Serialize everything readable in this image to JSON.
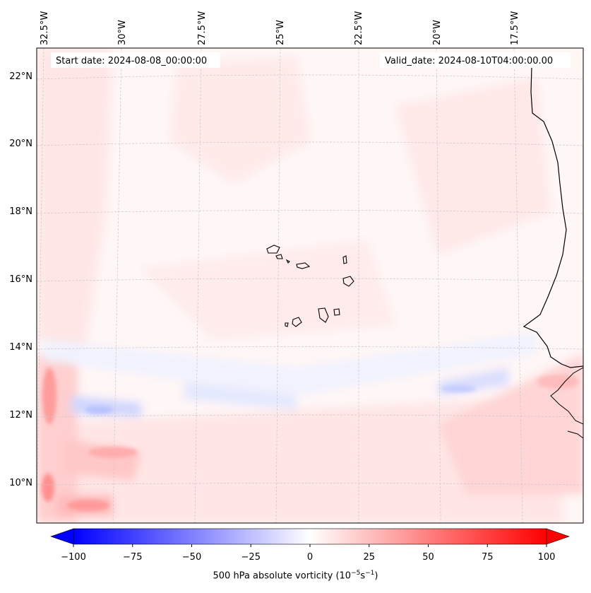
{
  "annotations": {
    "start_date": "Start date: 2024-08-08_00:00:00",
    "valid_date": "Valid_date: 2024-08-10T04:00:00.00"
  },
  "longitude_labels": [
    "32.5°W",
    "30°W",
    "27.5°W",
    "25°W",
    "22.5°W",
    "20°W",
    "17.5°W"
  ],
  "latitude_labels": [
    "22°N",
    "20°N",
    "18°N",
    "16°N",
    "14°N",
    "12°N",
    "10°N"
  ],
  "colorbar": {
    "ticks": [
      "−100",
      "−75",
      "−50",
      "−25",
      "0",
      "25",
      "50",
      "75",
      "100"
    ],
    "range": [
      -100,
      100
    ],
    "label_main": "500 hPa absolute vorticity (10",
    "label_exp1": "−5",
    "label_mid": "s",
    "label_exp2": "−1",
    "label_end": ")",
    "colors": {
      "low": "#0000ff",
      "mid": "#ffffff",
      "high": "#ff0000"
    }
  },
  "map": {
    "background": "#fff6f6",
    "coastline_color": "#000000",
    "gridline_color": "#c8c8c8"
  }
}
